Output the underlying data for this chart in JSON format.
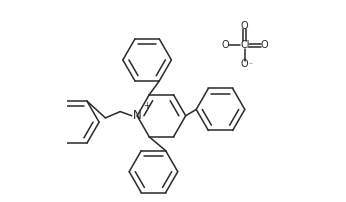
{
  "bg_color": "#ffffff",
  "line_color": "#2a2a2a",
  "line_width": 1.1,
  "font_size": 7.0,
  "xlim": [
    0.0,
    1.0
  ],
  "ylim": [
    0.05,
    1.0
  ]
}
